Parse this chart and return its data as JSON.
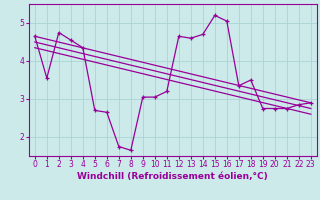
{
  "xlabel": "Windchill (Refroidissement éolien,°C)",
  "line_color": "#990099",
  "bg_color": "#cceaea",
  "grid_color": "#aad4d4",
  "xlim": [
    -0.5,
    23.5
  ],
  "ylim": [
    1.5,
    5.5
  ],
  "yticks": [
    2,
    3,
    4,
    5
  ],
  "xticks": [
    0,
    1,
    2,
    3,
    4,
    5,
    6,
    7,
    8,
    9,
    10,
    11,
    12,
    13,
    14,
    15,
    16,
    17,
    18,
    19,
    20,
    21,
    22,
    23
  ],
  "series1_x": [
    0,
    1,
    2,
    3,
    4,
    5,
    6,
    7,
    8,
    9,
    10,
    11,
    12,
    13,
    14,
    15,
    16,
    17,
    18,
    19,
    20,
    21,
    22,
    23
  ],
  "series1_y": [
    4.65,
    3.55,
    4.75,
    4.55,
    4.35,
    2.7,
    2.65,
    1.75,
    1.65,
    3.05,
    3.05,
    3.2,
    4.65,
    4.6,
    4.7,
    5.2,
    5.05,
    3.35,
    3.5,
    2.75,
    2.75,
    2.75,
    2.85,
    2.9
  ],
  "trend1_x": [
    0,
    23
  ],
  "trend1_y": [
    4.65,
    2.9
  ],
  "trend2_x": [
    0,
    23
  ],
  "trend2_y": [
    4.5,
    2.75
  ],
  "trend3_x": [
    0,
    23
  ],
  "trend3_y": [
    4.35,
    2.6
  ]
}
